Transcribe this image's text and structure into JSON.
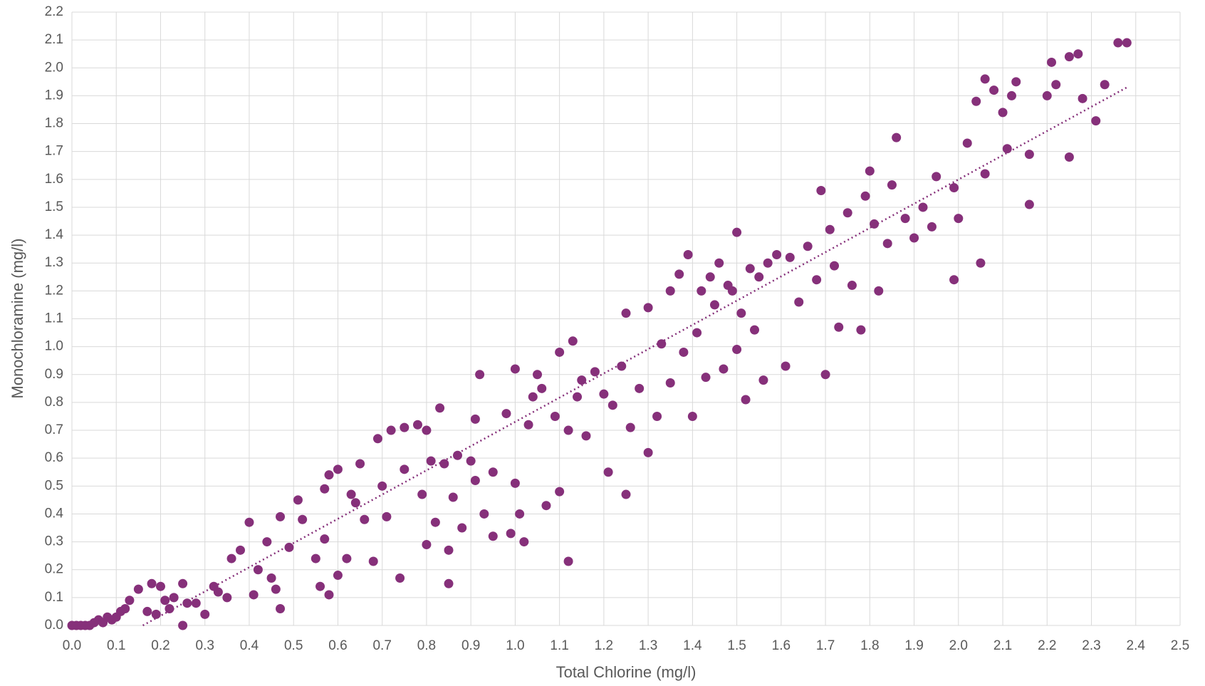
{
  "chart_data": {
    "type": "scatter",
    "x_label": "Total Chlorine (mg/l)",
    "y_label": "Monochloramine (mg/l)",
    "color": "#86307a",
    "trendline_color": "#86307a",
    "grid": true,
    "xlim": [
      0,
      2.5
    ],
    "ylim": [
      0,
      2.2
    ],
    "xticks": [
      {
        "value": 0,
        "label": "0.0"
      },
      0.1,
      0.2,
      0.3,
      0.4,
      0.5,
      0.6,
      0.7,
      0.8,
      0.9,
      {
        "value": 1,
        "label": "1.0"
      },
      1.1,
      1.2,
      1.3,
      1.4,
      1.5,
      1.6,
      1.7,
      1.8,
      1.9,
      {
        "value": 2,
        "label": "2.0"
      },
      2.1,
      2.2,
      2.3,
      2.4,
      2.5
    ],
    "yticks": [
      {
        "value": 0,
        "label": "0.0"
      },
      0.1,
      0.2,
      0.3,
      0.4,
      0.5,
      0.6,
      0.7,
      0.8,
      0.9,
      {
        "value": 1,
        "label": "1.0"
      },
      1.1,
      1.2,
      1.3,
      1.4,
      1.5,
      1.6,
      1.7,
      1.8,
      1.9,
      {
        "value": 2,
        "label": "2.0"
      },
      2.1,
      2.2
    ],
    "x": [
      0,
      0.01,
      0.02,
      0.03,
      0.04,
      0.05,
      0.06,
      0.07,
      0.08,
      0.09,
      0.1,
      0.11,
      0.12,
      0.13,
      0.15,
      0.17,
      0.18,
      0.19,
      0.2,
      0.21,
      0.22,
      0.23,
      0.25,
      0.25,
      0.26,
      0.28,
      0.3,
      0.32,
      0.33,
      0.35,
      0.36,
      0.38,
      0.4,
      0.41,
      0.42,
      0.44,
      0.45,
      0.46,
      0.47,
      0.47,
      0.49,
      0.51,
      0.52,
      0.55,
      0.56,
      0.57,
      0.57,
      0.58,
      0.58,
      0.6,
      0.6,
      0.62,
      0.63,
      0.64,
      0.65,
      0.66,
      0.68,
      0.69,
      0.7,
      0.71,
      0.72,
      0.74,
      0.75,
      0.75,
      0.78,
      0.79,
      0.8,
      0.8,
      0.81,
      0.82,
      0.83,
      0.84,
      0.85,
      0.85,
      0.86,
      0.87,
      0.88,
      0.9,
      0.91,
      0.91,
      0.92,
      0.93,
      0.95,
      0.95,
      0.98,
      0.99,
      1.0,
      1.0,
      1.01,
      1.02,
      1.03,
      1.04,
      1.05,
      1.06,
      1.07,
      1.09,
      1.1,
      1.1,
      1.12,
      1.12,
      1.13,
      1.14,
      1.15,
      1.16,
      1.18,
      1.2,
      1.21,
      1.22,
      1.24,
      1.25,
      1.25,
      1.26,
      1.28,
      1.3,
      1.3,
      1.32,
      1.33,
      1.35,
      1.35,
      1.37,
      1.38,
      1.39,
      1.4,
      1.41,
      1.42,
      1.43,
      1.44,
      1.45,
      1.46,
      1.47,
      1.48,
      1.49,
      1.5,
      1.5,
      1.51,
      1.52,
      1.53,
      1.54,
      1.55,
      1.56,
      1.57,
      1.59,
      1.61,
      1.62,
      1.64,
      1.66,
      1.68,
      1.69,
      1.7,
      1.71,
      1.72,
      1.73,
      1.75,
      1.76,
      1.78,
      1.79,
      1.8,
      1.81,
      1.82,
      1.84,
      1.85,
      1.86,
      1.88,
      1.9,
      1.92,
      1.94,
      1.95,
      1.99,
      1.99,
      2.0,
      2.02,
      2.04,
      2.05,
      2.06,
      2.06,
      2.08,
      2.1,
      2.11,
      2.12,
      2.13,
      2.16,
      2.16,
      2.2,
      2.21,
      2.22,
      2.25,
      2.25,
      2.27,
      2.28,
      2.31,
      2.33,
      2.36,
      2.38
    ],
    "values": [
      0,
      0,
      0,
      0,
      0,
      0.01,
      0.02,
      0.01,
      0.03,
      0.02,
      0.03,
      0.05,
      0.06,
      0.09,
      0.13,
      0.05,
      0.15,
      0.04,
      0.14,
      0.09,
      0.06,
      0.1,
      0.15,
      0,
      0.08,
      0.08,
      0.04,
      0.14,
      0.12,
      0.1,
      0.24,
      0.27,
      0.37,
      0.11,
      0.2,
      0.3,
      0.17,
      0.13,
      0.06,
      0.39,
      0.28,
      0.45,
      0.38,
      0.24,
      0.14,
      0.31,
      0.49,
      0.54,
      0.11,
      0.18,
      0.56,
      0.24,
      0.47,
      0.44,
      0.58,
      0.38,
      0.23,
      0.67,
      0.5,
      0.39,
      0.7,
      0.17,
      0.56,
      0.71,
      0.72,
      0.47,
      0.29,
      0.7,
      0.59,
      0.37,
      0.78,
      0.58,
      0.15,
      0.27,
      0.46,
      0.61,
      0.35,
      0.59,
      0.52,
      0.74,
      0.9,
      0.4,
      0.55,
      0.32,
      0.76,
      0.33,
      0.92,
      0.51,
      0.4,
      0.3,
      0.72,
      0.82,
      0.9,
      0.85,
      0.43,
      0.75,
      0.98,
      0.48,
      0.23,
      0.7,
      1.02,
      0.82,
      0.88,
      0.68,
      0.91,
      0.83,
      0.55,
      0.79,
      0.93,
      1.12,
      0.47,
      0.71,
      0.85,
      0.62,
      1.14,
      0.75,
      1.01,
      0.87,
      1.2,
      1.26,
      0.98,
      1.33,
      0.75,
      1.05,
      1.2,
      0.89,
      1.25,
      1.15,
      1.3,
      0.92,
      1.22,
      1.2,
      1.41,
      0.99,
      1.12,
      0.81,
      1.28,
      1.06,
      1.25,
      0.88,
      1.3,
      1.33,
      0.93,
      1.32,
      1.16,
      1.36,
      1.24,
      1.56,
      0.9,
      1.42,
      1.29,
      1.07,
      1.48,
      1.22,
      1.06,
      1.54,
      1.63,
      1.44,
      1.2,
      1.37,
      1.58,
      1.75,
      1.46,
      1.39,
      1.5,
      1.43,
      1.61,
      1.24,
      1.57,
      1.46,
      1.73,
      1.88,
      1.3,
      1.96,
      1.62,
      1.92,
      1.84,
      1.71,
      1.9,
      1.95,
      1.69,
      1.51,
      1.9,
      2.02,
      1.94,
      1.68,
      2.04,
      2.05,
      1.89,
      1.81,
      1.94,
      2.09,
      2.09
    ],
    "trendline": {
      "x": [
        0.16,
        2.38
      ],
      "values": [
        0,
        1.93
      ]
    }
  }
}
